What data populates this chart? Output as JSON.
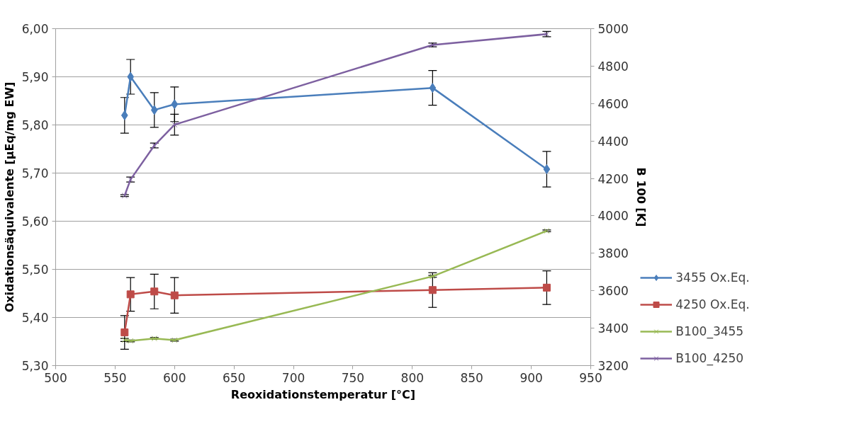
{
  "chart_data": {
    "type": "line",
    "xlabel": "Reoxidationstemperatur [°C]",
    "ylabel": "Oxidationsäquivalente [µEq/mg EW]",
    "y2label": "B 100 [K]",
    "x": [
      558,
      563,
      583,
      600,
      817,
      913
    ],
    "xlim": [
      500,
      950
    ],
    "xticks": [
      500,
      550,
      600,
      650,
      700,
      750,
      800,
      850,
      900,
      950
    ],
    "ylim": [
      5.3,
      6.0
    ],
    "yticks": [
      {
        "value": 5.3,
        "label": "5,30"
      },
      {
        "value": 5.4,
        "label": "5,40"
      },
      {
        "value": 5.5,
        "label": "5,50"
      },
      {
        "value": 5.6,
        "label": "5,60"
      },
      {
        "value": 5.7,
        "label": "5,70"
      },
      {
        "value": 5.8,
        "label": "5,80"
      },
      {
        "value": 5.9,
        "label": "5,90"
      },
      {
        "value": 6.0,
        "label": "6,00"
      }
    ],
    "y2lim": [
      3200,
      5000
    ],
    "y2ticks": [
      3200,
      3400,
      3600,
      3800,
      4000,
      4200,
      4400,
      4600,
      4800,
      5000
    ],
    "grid": "y",
    "legend": "right",
    "series": [
      {
        "name": "3455 Ox.Eq.",
        "color": "#4a7ebb",
        "marker": "diamond",
        "values": [
          5.82,
          5.9,
          5.831,
          5.843,
          5.877,
          5.708
        ],
        "errors": [
          0.037,
          0.036,
          0.036,
          0.036,
          0.036,
          0.037
        ]
      },
      {
        "name": "4250 Ox.Eq.",
        "color": "#be4b48",
        "marker": "square",
        "values": [
          5.369,
          5.448,
          5.454,
          5.446,
          5.457,
          5.462
        ],
        "errors": [
          0.035,
          0.035,
          0.036,
          0.037,
          0.036,
          0.035
        ]
      },
      {
        "name": "B100_3455",
        "color": "#98b954",
        "marker": "cross",
        "axis": "y2",
        "values": [
          3337,
          3332,
          3345,
          3336,
          3677,
          3920
        ],
        "errors": [
          8,
          5,
          5,
          5,
          5,
          5
        ]
      },
      {
        "name": "B100_4250",
        "color": "#7d60a0",
        "marker": "cross",
        "axis": "y2",
        "values": [
          4108,
          4194,
          4376,
          4487,
          4913,
          4971
        ],
        "errors": [
          5,
          13,
          13,
          56,
          10,
          14
        ]
      }
    ]
  }
}
